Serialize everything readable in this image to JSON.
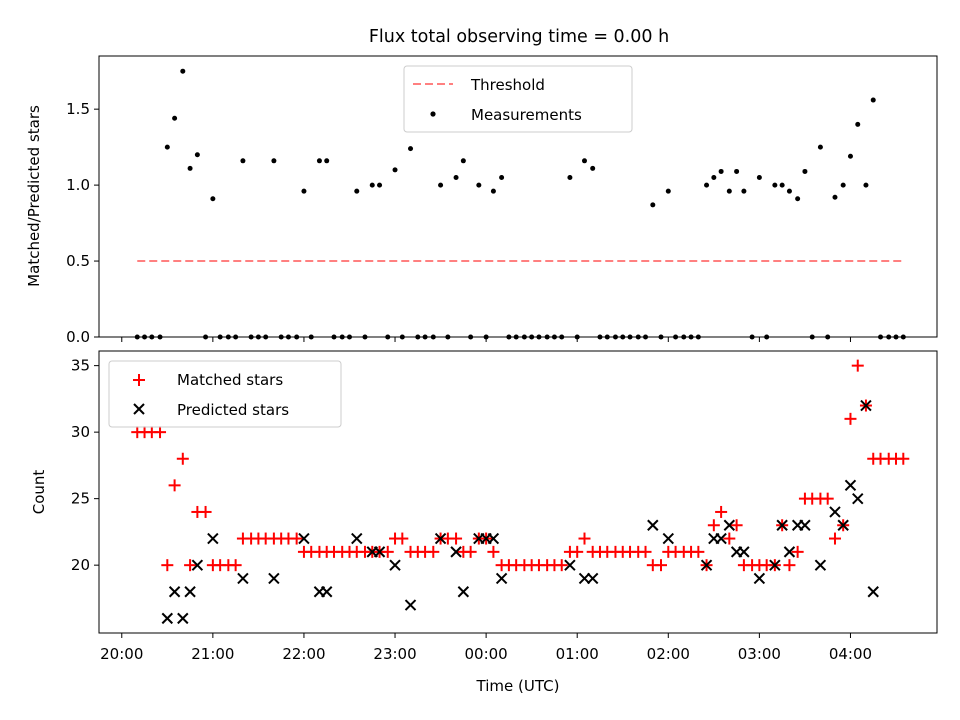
{
  "chart_data": [
    {
      "type": "scatter",
      "title": "Flux total observing time = 0.00 h",
      "ylabel": "Matched/Predicted stars",
      "xlabel": "",
      "xlim": [
        -0.25,
        8.95
      ],
      "ylim": [
        0,
        1.85
      ],
      "yticks": [
        0.0,
        0.5,
        1.0,
        1.5
      ],
      "ytick_labels": [
        "0.0",
        "0.5",
        "1.0",
        "1.5"
      ],
      "legend": {
        "position": "top-center",
        "entries": [
          "Threshold",
          "Measurements"
        ]
      },
      "threshold": {
        "name": "Threshold",
        "value": 0.5,
        "x_start": 0.17,
        "x_end": 8.58,
        "color": "#ff8080"
      },
      "series": [
        {
          "name": "Measurements",
          "color": "#000000",
          "points": [
            [
              0.17,
              0
            ],
            [
              0.25,
              0
            ],
            [
              0.33,
              0
            ],
            [
              0.42,
              0
            ],
            [
              0.5,
              1.25
            ],
            [
              0.58,
              1.44
            ],
            [
              0.67,
              1.75
            ],
            [
              0.75,
              1.11
            ],
            [
              0.83,
              1.2
            ],
            [
              0.92,
              0
            ],
            [
              1.0,
              0.91
            ],
            [
              1.08,
              0
            ],
            [
              1.17,
              0
            ],
            [
              1.25,
              0
            ],
            [
              1.33,
              1.16
            ],
            [
              1.42,
              0
            ],
            [
              1.5,
              0
            ],
            [
              1.58,
              0
            ],
            [
              1.67,
              1.16
            ],
            [
              1.75,
              0
            ],
            [
              1.83,
              0
            ],
            [
              1.92,
              0
            ],
            [
              2.0,
              0.96
            ],
            [
              2.08,
              0
            ],
            [
              2.17,
              1.16
            ],
            [
              2.25,
              1.16
            ],
            [
              2.33,
              0
            ],
            [
              2.42,
              0
            ],
            [
              2.5,
              0
            ],
            [
              2.58,
              0.96
            ],
            [
              2.67,
              0
            ],
            [
              2.75,
              1.0
            ],
            [
              2.83,
              1.0
            ],
            [
              2.92,
              0
            ],
            [
              3.0,
              1.1
            ],
            [
              3.08,
              0
            ],
            [
              3.17,
              1.24
            ],
            [
              3.25,
              0
            ],
            [
              3.33,
              0
            ],
            [
              3.42,
              0
            ],
            [
              3.5,
              1.0
            ],
            [
              3.58,
              0
            ],
            [
              3.67,
              1.05
            ],
            [
              3.75,
              1.16
            ],
            [
              3.83,
              0
            ],
            [
              3.92,
              1.0
            ],
            [
              4.0,
              0
            ],
            [
              4.08,
              0.96
            ],
            [
              4.17,
              1.05
            ],
            [
              4.25,
              0
            ],
            [
              4.33,
              0
            ],
            [
              4.42,
              0
            ],
            [
              4.5,
              0
            ],
            [
              4.58,
              0
            ],
            [
              4.67,
              0
            ],
            [
              4.75,
              0
            ],
            [
              4.83,
              0
            ],
            [
              4.92,
              1.05
            ],
            [
              5.0,
              0
            ],
            [
              5.08,
              1.16
            ],
            [
              5.17,
              1.11
            ],
            [
              5.25,
              0
            ],
            [
              5.33,
              0
            ],
            [
              5.42,
              0
            ],
            [
              5.5,
              0
            ],
            [
              5.58,
              0
            ],
            [
              5.67,
              0
            ],
            [
              5.75,
              0
            ],
            [
              5.83,
              0.87
            ],
            [
              5.92,
              0
            ],
            [
              6.0,
              0.96
            ],
            [
              6.08,
              0
            ],
            [
              6.17,
              0
            ],
            [
              6.25,
              0
            ],
            [
              6.33,
              0
            ],
            [
              6.42,
              1.0
            ],
            [
              6.5,
              1.05
            ],
            [
              6.58,
              1.09
            ],
            [
              6.67,
              0.96
            ],
            [
              6.75,
              1.09
            ],
            [
              6.83,
              0.96
            ],
            [
              6.92,
              0
            ],
            [
              7.0,
              1.05
            ],
            [
              7.08,
              0
            ],
            [
              7.17,
              1.0
            ],
            [
              7.25,
              1.0
            ],
            [
              7.33,
              0.96
            ],
            [
              7.42,
              0.91
            ],
            [
              7.5,
              1.09
            ],
            [
              7.58,
              0
            ],
            [
              7.67,
              1.25
            ],
            [
              7.75,
              0
            ],
            [
              7.83,
              0.92
            ],
            [
              7.92,
              1.0
            ],
            [
              8.0,
              1.19
            ],
            [
              8.08,
              1.4
            ],
            [
              8.17,
              1.0
            ],
            [
              8.25,
              1.56
            ],
            [
              8.33,
              0
            ],
            [
              8.42,
              0
            ],
            [
              8.5,
              0
            ],
            [
              8.58,
              0
            ]
          ]
        }
      ]
    },
    {
      "type": "scatter",
      "title": "",
      "ylabel": "Count",
      "xlabel": "Time (UTC)",
      "xlim": [
        -0.25,
        8.95
      ],
      "ylim": [
        14.9,
        36.1
      ],
      "yticks": [
        20,
        25,
        30,
        35
      ],
      "ytick_labels": [
        "20",
        "25",
        "30",
        "35"
      ],
      "xticks": [
        0,
        1,
        2,
        3,
        4,
        5,
        6,
        7,
        8
      ],
      "xtick_labels": [
        "20:00",
        "21:00",
        "22:00",
        "23:00",
        "00:00",
        "01:00",
        "02:00",
        "03:00",
        "04:00"
      ],
      "legend": {
        "position": "top-left",
        "entries": [
          "Matched stars",
          "Predicted stars"
        ]
      },
      "series": [
        {
          "name": "Matched stars",
          "marker": "plus",
          "color": "#ff0000",
          "points": [
            [
              0.17,
              30
            ],
            [
              0.25,
              30
            ],
            [
              0.33,
              30
            ],
            [
              0.42,
              30
            ],
            [
              0.5,
              20
            ],
            [
              0.58,
              26
            ],
            [
              0.67,
              28
            ],
            [
              0.75,
              20
            ],
            [
              0.83,
              24
            ],
            [
              0.92,
              24
            ],
            [
              1.0,
              20
            ],
            [
              1.08,
              20
            ],
            [
              1.17,
              20
            ],
            [
              1.25,
              20
            ],
            [
              1.33,
              22
            ],
            [
              1.42,
              22
            ],
            [
              1.5,
              22
            ],
            [
              1.58,
              22
            ],
            [
              1.67,
              22
            ],
            [
              1.75,
              22
            ],
            [
              1.83,
              22
            ],
            [
              1.92,
              22
            ],
            [
              2.0,
              21
            ],
            [
              2.08,
              21
            ],
            [
              2.17,
              21
            ],
            [
              2.25,
              21
            ],
            [
              2.33,
              21
            ],
            [
              2.42,
              21
            ],
            [
              2.5,
              21
            ],
            [
              2.58,
              21
            ],
            [
              2.67,
              21
            ],
            [
              2.75,
              21
            ],
            [
              2.83,
              21
            ],
            [
              2.92,
              21
            ],
            [
              3.0,
              22
            ],
            [
              3.08,
              22
            ],
            [
              3.17,
              21
            ],
            [
              3.25,
              21
            ],
            [
              3.33,
              21
            ],
            [
              3.42,
              21
            ],
            [
              3.5,
              22
            ],
            [
              3.58,
              22
            ],
            [
              3.67,
              22
            ],
            [
              3.75,
              21
            ],
            [
              3.83,
              21
            ],
            [
              3.92,
              22
            ],
            [
              4.0,
              22
            ],
            [
              4.08,
              21
            ],
            [
              4.17,
              20
            ],
            [
              4.25,
              20
            ],
            [
              4.33,
              20
            ],
            [
              4.42,
              20
            ],
            [
              4.5,
              20
            ],
            [
              4.58,
              20
            ],
            [
              4.67,
              20
            ],
            [
              4.75,
              20
            ],
            [
              4.83,
              20
            ],
            [
              4.92,
              21
            ],
            [
              5.0,
              21
            ],
            [
              5.08,
              22
            ],
            [
              5.17,
              21
            ],
            [
              5.25,
              21
            ],
            [
              5.33,
              21
            ],
            [
              5.42,
              21
            ],
            [
              5.5,
              21
            ],
            [
              5.58,
              21
            ],
            [
              5.67,
              21
            ],
            [
              5.75,
              21
            ],
            [
              5.83,
              20
            ],
            [
              5.92,
              20
            ],
            [
              6.0,
              21
            ],
            [
              6.08,
              21
            ],
            [
              6.17,
              21
            ],
            [
              6.25,
              21
            ],
            [
              6.33,
              21
            ],
            [
              6.42,
              20
            ],
            [
              6.5,
              23
            ],
            [
              6.58,
              24
            ],
            [
              6.67,
              22
            ],
            [
              6.75,
              23
            ],
            [
              6.83,
              20
            ],
            [
              6.92,
              20
            ],
            [
              7.0,
              20
            ],
            [
              7.08,
              20
            ],
            [
              7.17,
              20
            ],
            [
              7.25,
              23
            ],
            [
              7.33,
              20
            ],
            [
              7.42,
              21
            ],
            [
              7.5,
              25
            ],
            [
              7.58,
              25
            ],
            [
              7.67,
              25
            ],
            [
              7.75,
              25
            ],
            [
              7.83,
              22
            ],
            [
              7.92,
              23
            ],
            [
              8.0,
              31
            ],
            [
              8.08,
              35
            ],
            [
              8.17,
              32
            ],
            [
              8.25,
              28
            ],
            [
              8.33,
              28
            ],
            [
              8.42,
              28
            ],
            [
              8.5,
              28
            ],
            [
              8.58,
              28
            ]
          ]
        },
        {
          "name": "Predicted stars",
          "marker": "x",
          "color": "#000000",
          "points": [
            [
              0.5,
              16
            ],
            [
              0.58,
              18
            ],
            [
              0.67,
              16
            ],
            [
              0.75,
              18
            ],
            [
              0.83,
              20
            ],
            [
              1.0,
              22
            ],
            [
              1.33,
              19
            ],
            [
              1.67,
              19
            ],
            [
              2.0,
              22
            ],
            [
              2.17,
              18
            ],
            [
              2.25,
              18
            ],
            [
              2.58,
              22
            ],
            [
              2.75,
              21
            ],
            [
              2.83,
              21
            ],
            [
              3.0,
              20
            ],
            [
              3.17,
              17
            ],
            [
              3.5,
              22
            ],
            [
              3.67,
              21
            ],
            [
              3.75,
              18
            ],
            [
              3.92,
              22
            ],
            [
              4.0,
              22
            ],
            [
              4.08,
              22
            ],
            [
              4.17,
              19
            ],
            [
              4.92,
              20
            ],
            [
              5.08,
              19
            ],
            [
              5.17,
              19
            ],
            [
              5.83,
              23
            ],
            [
              6.0,
              22
            ],
            [
              6.42,
              20
            ],
            [
              6.5,
              22
            ],
            [
              6.58,
              22
            ],
            [
              6.67,
              23
            ],
            [
              6.75,
              21
            ],
            [
              6.83,
              21
            ],
            [
              7.0,
              19
            ],
            [
              7.17,
              20
            ],
            [
              7.25,
              23
            ],
            [
              7.33,
              21
            ],
            [
              7.42,
              23
            ],
            [
              7.5,
              23
            ],
            [
              7.67,
              20
            ],
            [
              7.83,
              24
            ],
            [
              7.92,
              23
            ],
            [
              8.0,
              26
            ],
            [
              8.08,
              25
            ],
            [
              8.17,
              32
            ],
            [
              8.25,
              18
            ]
          ]
        }
      ]
    }
  ]
}
